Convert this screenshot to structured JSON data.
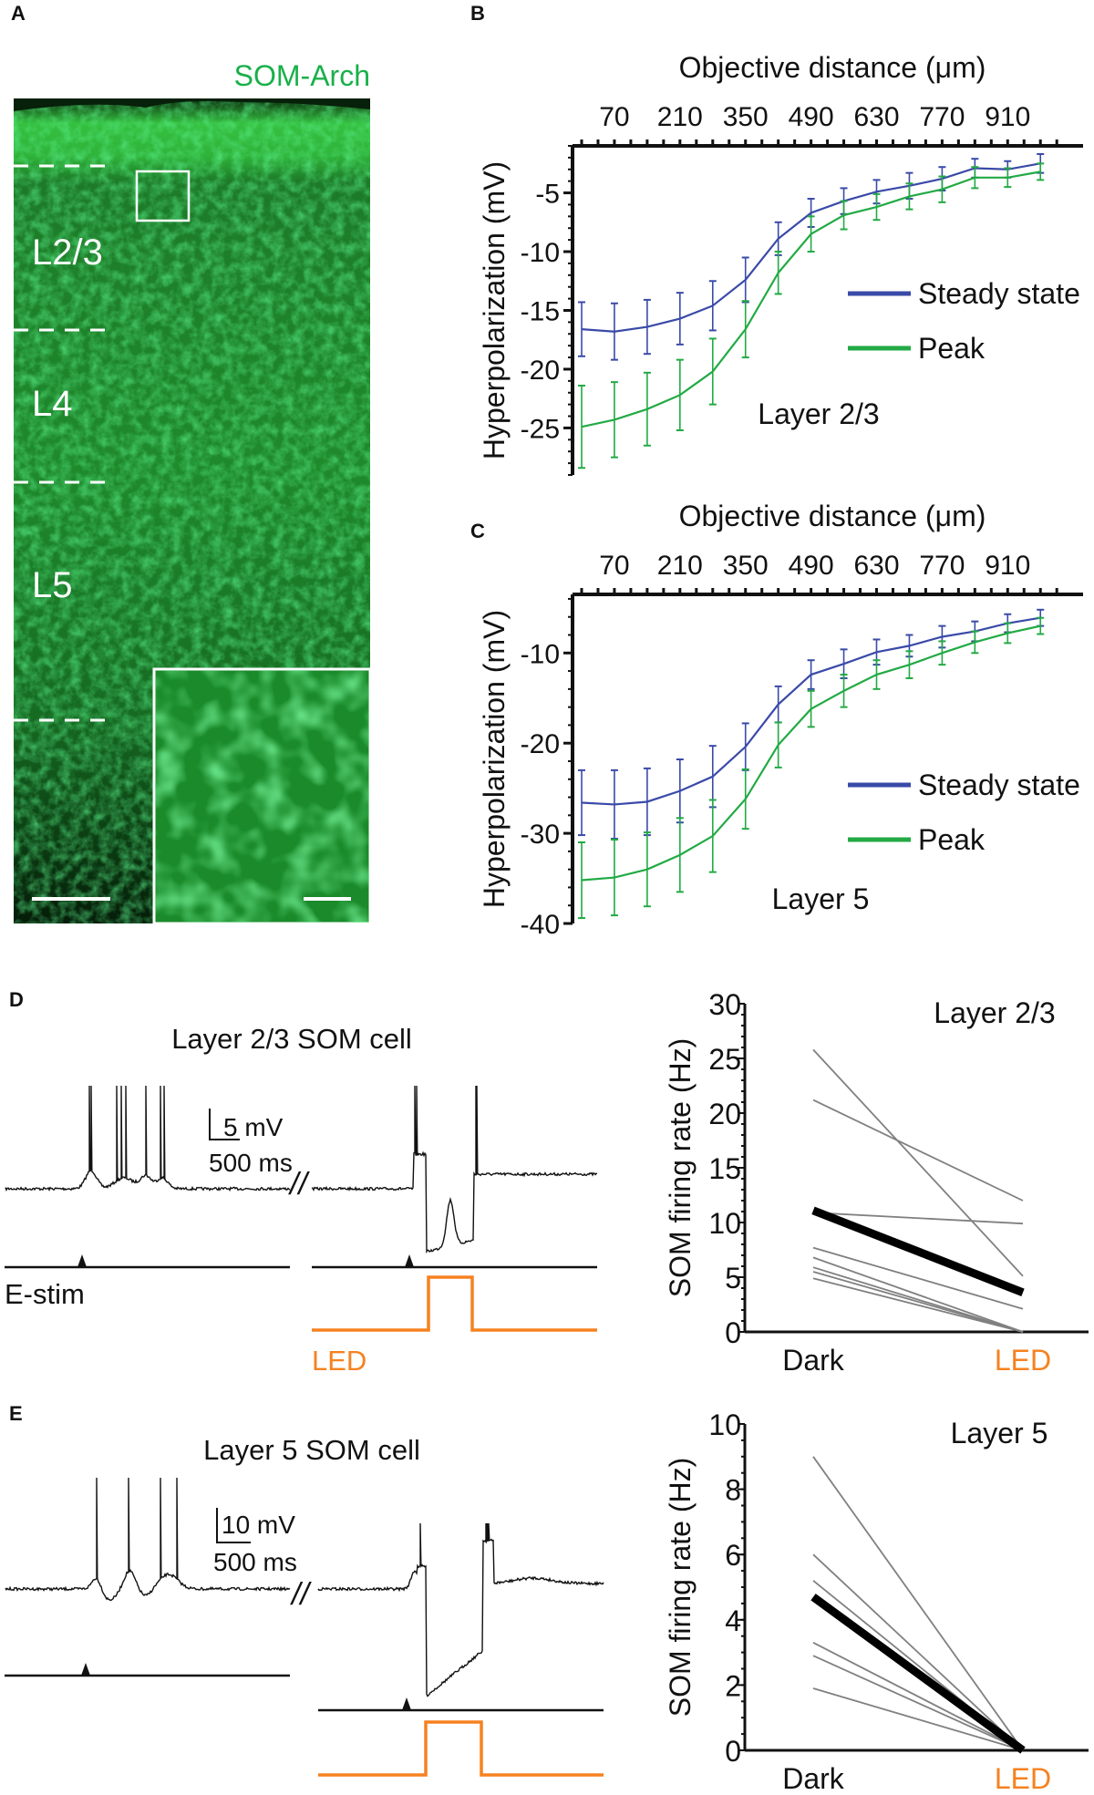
{
  "panel_labels": {
    "a": "A",
    "b": "B",
    "c": "C",
    "d": "D",
    "e": "E"
  },
  "panel_a": {
    "stain_label": "SOM-Arch",
    "layers": [
      "L2/3",
      "L4",
      "L5"
    ],
    "stain_color": "#19b04a"
  },
  "colors": {
    "steady": "#3a4aa8",
    "peak": "#22aa44",
    "led": "#f58220",
    "mean": "#000000",
    "cell": "#808080"
  },
  "chart_data": [
    {
      "id": "B",
      "type": "line",
      "xlabel": "Objective distance (μm)",
      "ylabel": "Hyperpolarization (mV)",
      "annotation": "Layer 2/3",
      "x": [
        0,
        70,
        140,
        210,
        280,
        350,
        420,
        490,
        560,
        630,
        700,
        770,
        840,
        910,
        980
      ],
      "xticks": [
        70,
        210,
        350,
        490,
        630,
        770,
        910
      ],
      "xtick_labels": [
        "70",
        "210",
        "350",
        "490",
        "630",
        "770",
        "910"
      ],
      "yticks": [
        -5,
        -10,
        -15,
        -20,
        -25
      ],
      "ytick_labels": [
        "-5",
        "-10",
        "-15",
        "-20",
        "-25"
      ],
      "xlim": [
        0,
        980
      ],
      "ylim": [
        -29,
        -1
      ],
      "x_axis_position": "top",
      "legend_position": "right",
      "series": [
        {
          "name": "Steady state",
          "color": "#3a4aa8",
          "values": [
            -16.6,
            -16.8,
            -16.4,
            -15.7,
            -14.6,
            -12.4,
            -8.9,
            -6.7,
            -5.7,
            -4.9,
            -4.4,
            -3.8,
            -2.9,
            -3.0,
            -2.5
          ],
          "errors": [
            2.3,
            2.4,
            2.3,
            2.2,
            2.1,
            1.9,
            1.4,
            1.2,
            1.1,
            1.0,
            1.1,
            1.0,
            0.8,
            0.7,
            0.8
          ]
        },
        {
          "name": "Peak",
          "color": "#22aa44",
          "values": [
            -24.9,
            -24.3,
            -23.4,
            -22.2,
            -20.2,
            -16.6,
            -11.8,
            -8.5,
            -6.9,
            -6.2,
            -5.3,
            -4.7,
            -3.7,
            -3.7,
            -3.2
          ],
          "errors": [
            3.5,
            3.2,
            3.1,
            3.0,
            2.8,
            2.4,
            1.8,
            1.5,
            1.2,
            1.1,
            1.1,
            1.1,
            0.9,
            0.8,
            0.7
          ]
        }
      ]
    },
    {
      "id": "C",
      "type": "line",
      "xlabel": "Objective distance (μm)",
      "ylabel": "Hyperpolarization (mV)",
      "annotation": "Layer 5",
      "x": [
        0,
        70,
        140,
        210,
        280,
        350,
        420,
        490,
        560,
        630,
        700,
        770,
        840,
        910,
        980
      ],
      "xticks": [
        70,
        210,
        350,
        490,
        630,
        770,
        910
      ],
      "xtick_labels": [
        "70",
        "210",
        "350",
        "490",
        "630",
        "770",
        "910"
      ],
      "yticks": [
        -10,
        -20,
        -30,
        -40
      ],
      "ytick_labels": [
        "-10",
        "-20",
        "-30",
        "-40"
      ],
      "xlim": [
        0,
        980
      ],
      "ylim": [
        -40,
        -3.5
      ],
      "x_axis_position": "top",
      "legend_position": "right",
      "series": [
        {
          "name": "Steady state",
          "color": "#3a4aa8",
          "values": [
            -26.6,
            -26.8,
            -26.5,
            -25.3,
            -23.7,
            -20.4,
            -15.7,
            -12.4,
            -11.2,
            -9.9,
            -9.2,
            -8.2,
            -7.6,
            -6.7,
            -6.1
          ],
          "errors": [
            3.6,
            3.8,
            3.7,
            3.5,
            3.4,
            2.6,
            2.0,
            1.6,
            1.6,
            1.4,
            1.2,
            1.2,
            1.1,
            1.0,
            0.9
          ]
        },
        {
          "name": "Peak",
          "color": "#22aa44",
          "values": [
            -35.2,
            -34.9,
            -34.0,
            -32.4,
            -30.3,
            -26.2,
            -20.2,
            -16.2,
            -14.2,
            -12.4,
            -11.3,
            -10.0,
            -8.8,
            -7.8,
            -7.0
          ],
          "errors": [
            4.2,
            4.2,
            4.1,
            4.1,
            4.0,
            3.3,
            2.5,
            2.0,
            1.8,
            1.6,
            1.5,
            1.3,
            1.2,
            1.1,
            0.9
          ]
        }
      ]
    },
    {
      "id": "D-right",
      "type": "line",
      "ylabel": "SOM firing rate (Hz)",
      "annotation": "Layer 2/3",
      "categories": [
        "Dark",
        "LED"
      ],
      "category_colors": [
        "#111111",
        "#f58220"
      ],
      "yticks": [
        0,
        5,
        10,
        15,
        20,
        25,
        30
      ],
      "ytick_labels": [
        "0",
        "5",
        "10",
        "15",
        "20",
        "25",
        "30"
      ],
      "ylim": [
        0,
        30
      ],
      "cells": [
        [
          25.8,
          5.1
        ],
        [
          21.2,
          12.0
        ],
        [
          10.9,
          9.9
        ],
        [
          7.7,
          2.1
        ],
        [
          6.8,
          0
        ],
        [
          5.9,
          0
        ],
        [
          5.5,
          0
        ],
        [
          4.9,
          0
        ]
      ],
      "mean": [
        11.1,
        3.6
      ]
    },
    {
      "id": "E-right",
      "type": "line",
      "ylabel": "SOM firing rate (Hz)",
      "annotation": "Layer 5",
      "categories": [
        "Dark",
        "LED"
      ],
      "category_colors": [
        "#111111",
        "#f58220"
      ],
      "yticks": [
        0,
        2,
        4,
        6,
        8,
        10
      ],
      "ytick_labels": [
        "0",
        "2",
        "4",
        "6",
        "8",
        "10"
      ],
      "ylim": [
        0,
        10
      ],
      "cells": [
        [
          9.0,
          0
        ],
        [
          6.0,
          0
        ],
        [
          5.2,
          0
        ],
        [
          3.3,
          0
        ],
        [
          2.9,
          0
        ],
        [
          1.9,
          0
        ]
      ],
      "mean": [
        4.7,
        0
      ]
    }
  ],
  "traces": {
    "d": {
      "title": "Layer 2/3 SOM cell",
      "scale_v": "5 mV",
      "scale_h": "500 ms",
      "break": "//",
      "stim_label": "E-stim",
      "led_label": "LED"
    },
    "e": {
      "title": "Layer 5 SOM cell",
      "scale_v": "10 mV",
      "scale_h": "500 ms",
      "break": "//"
    }
  }
}
